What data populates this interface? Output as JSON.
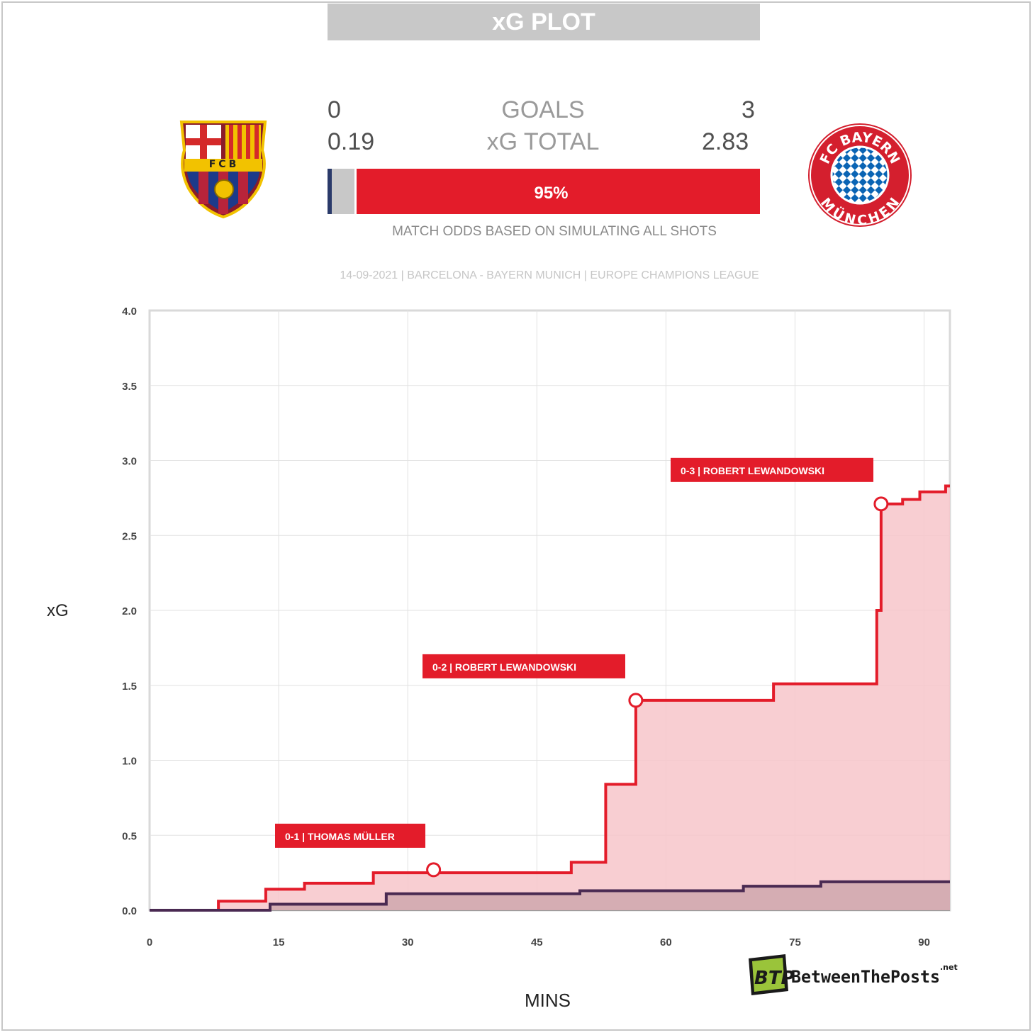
{
  "header": {
    "title": "xG PLOT"
  },
  "teams": {
    "home": {
      "name": "Barcelona",
      "goals": "0",
      "xg": "0.19",
      "logo_icon": "fcb-crest-icon",
      "logo_text": "FCB"
    },
    "away": {
      "name": "Bayern Munich",
      "goals": "3",
      "xg": "2.83",
      "logo_icon": "fc-bayern-munchen-crest-icon",
      "logo_text_top": "FC BAYERN",
      "logo_text_bottom": "MÜNCHEN"
    }
  },
  "stats": {
    "goals_label": "GOALS",
    "xg_label": "xG TOTAL"
  },
  "odds": {
    "home_pct": 0.01,
    "draw_pct": 0.04,
    "away_pct": 0.95,
    "away_label": "95%",
    "caption": "MATCH ODDS BASED ON SIMULATING ALL SHOTS",
    "colors": {
      "home": "#2a3a6a",
      "draw": "#c8c8c8",
      "away": "#e31c2a"
    }
  },
  "match_info": "14-09-2021 | BARCELONA - BAYERN MUNICH | EUROPE CHAMPIONS LEAGUE",
  "branding": {
    "logo_text": "BetweenThePosts",
    "logo_suffix": ".net",
    "logo_badge": "BTP"
  },
  "chart_data": {
    "type": "line",
    "xlabel": "MINS",
    "ylabel": "xG",
    "xlim": [
      0,
      93
    ],
    "ylim": [
      0,
      4
    ],
    "xticks": [
      0,
      15,
      30,
      45,
      60,
      75,
      90
    ],
    "yticks": [
      0.0,
      0.5,
      1.0,
      1.5,
      2.0,
      2.5,
      3.0,
      3.5,
      4.0
    ],
    "ytick_labels": [
      "0.0",
      "0.5",
      "1.0",
      "1.5",
      "2.0",
      "2.5",
      "3.0",
      "3.5",
      "4.0"
    ],
    "grid": true,
    "series": [
      {
        "team": "Bayern Munich",
        "color": "#e31c2a",
        "fill": "#f7c6ca",
        "step_x": [
          0,
          8,
          13.5,
          18,
          26,
          49,
          53,
          56.5,
          72.5,
          84.5,
          85,
          87.5,
          89.5,
          92.5,
          93
        ],
        "step_y": [
          0.0,
          0.06,
          0.14,
          0.18,
          0.25,
          0.32,
          0.84,
          1.4,
          1.51,
          2.0,
          2.71,
          2.74,
          2.79,
          2.83,
          2.83
        ]
      },
      {
        "team": "Barcelona",
        "color": "#4a2a52",
        "fill": "#cfa7ae",
        "step_x": [
          0,
          14,
          27.5,
          50,
          69,
          78,
          93
        ],
        "step_y": [
          0.0,
          0.04,
          0.11,
          0.13,
          0.16,
          0.19,
          0.19
        ]
      }
    ],
    "annotations": [
      {
        "label": "0-1 | THOMAS MÜLLER",
        "x": 33.0,
        "y": 0.27
      },
      {
        "label": "0-2 | ROBERT LEWANDOWSKI",
        "x": 56.5,
        "y": 1.4
      },
      {
        "label": "0-3 | ROBERT LEWANDOWSKI",
        "x": 85.0,
        "y": 2.71
      }
    ]
  }
}
